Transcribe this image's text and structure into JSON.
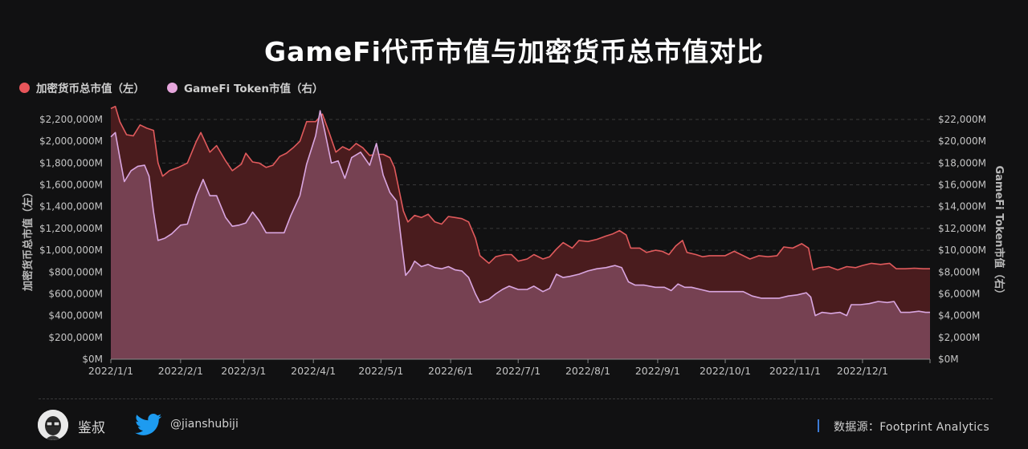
{
  "title": "GameFi代币市值与加密货币总市值对比",
  "legend": {
    "left_series": "加密货币总市值（左）",
    "right_series": "GameFi Token市值（右）"
  },
  "footer": {
    "author": "鉴叔",
    "handle": "@jianshubiji",
    "source": "数据源：Footprint Analytics"
  },
  "colors": {
    "background": "#111112",
    "crypto_line": "#e05a5c",
    "crypto_fill": "#4a1c1e",
    "gamefi_line": "#d9a6e0",
    "gamefi_fill": "#7a4457",
    "legend_crypto": "#e8555a",
    "legend_gamefi": "#e6a6dc",
    "twitter": "#1d9bf0"
  },
  "chart_data": {
    "type": "area",
    "title": "GameFi代币市值与加密货币总市值对比",
    "ylabel_left": "加密货币总市值（左）",
    "ylabel_right": "GameFi Token市值（右）",
    "ylim_left": [
      0,
      2200000
    ],
    "ylim_right": [
      0,
      22000
    ],
    "y_unit": "M",
    "yticks_left": [
      "$0M",
      "$200,000M",
      "$400,000M",
      "$600,000M",
      "$800,000M",
      "$1,000,000M",
      "$1,200,000M",
      "$1,400,000M",
      "$1,600,000M",
      "$1,800,000M",
      "$2,000,000M",
      "$2,200,000M"
    ],
    "yticks_right": [
      "$0M",
      "$2,000M",
      "$4,000M",
      "$6,000M",
      "$8,000M",
      "$10,000M",
      "$12,000M",
      "$14,000M",
      "$16,000M",
      "$18,000M",
      "$20,000M",
      "$22,000M"
    ],
    "xticks": [
      "2022/1/1",
      "2022/2/1",
      "2022/3/1",
      "2022/4/1",
      "2022/5/1",
      "2022/6/1",
      "2022/7/1",
      "2022/8/1",
      "2022/9/1",
      "2022/10/1",
      "2022/11/1",
      "2022/12/1"
    ],
    "grid": true,
    "legend_position": "top-left",
    "x_start": "2022/1/1",
    "x_end": "2022/12/31",
    "series": [
      {
        "name": "加密货币总市值（左）",
        "axis": "left",
        "points": [
          [
            "2022/1/1",
            2300000
          ],
          [
            "2022/1/3",
            2320000
          ],
          [
            "2022/1/5",
            2180000
          ],
          [
            "2022/1/8",
            2060000
          ],
          [
            "2022/1/11",
            2050000
          ],
          [
            "2022/1/14",
            2150000
          ],
          [
            "2022/1/17",
            2120000
          ],
          [
            "2022/1/20",
            2100000
          ],
          [
            "2022/1/22",
            1800000
          ],
          [
            "2022/1/24",
            1680000
          ],
          [
            "2022/1/27",
            1730000
          ],
          [
            "2022/1/31",
            1760000
          ],
          [
            "2022/2/4",
            1800000
          ],
          [
            "2022/2/8",
            2000000
          ],
          [
            "2022/2/10",
            2080000
          ],
          [
            "2022/2/14",
            1900000
          ],
          [
            "2022/2/17",
            1960000
          ],
          [
            "2022/2/21",
            1820000
          ],
          [
            "2022/2/24",
            1730000
          ],
          [
            "2022/2/28",
            1790000
          ],
          [
            "2022/3/2",
            1890000
          ],
          [
            "2022/3/5",
            1810000
          ],
          [
            "2022/3/8",
            1800000
          ],
          [
            "2022/3/11",
            1760000
          ],
          [
            "2022/3/14",
            1780000
          ],
          [
            "2022/3/17",
            1860000
          ],
          [
            "2022/3/20",
            1890000
          ],
          [
            "2022/3/23",
            1940000
          ],
          [
            "2022/3/26",
            2000000
          ],
          [
            "2022/3/29",
            2180000
          ],
          [
            "2022/4/2",
            2180000
          ],
          [
            "2022/4/5",
            2250000
          ],
          [
            "2022/4/8",
            2080000
          ],
          [
            "2022/4/11",
            1900000
          ],
          [
            "2022/4/14",
            1950000
          ],
          [
            "2022/4/17",
            1920000
          ],
          [
            "2022/4/20",
            1980000
          ],
          [
            "2022/4/23",
            1940000
          ],
          [
            "2022/4/26",
            1870000
          ],
          [
            "2022/4/29",
            1880000
          ],
          [
            "2022/5/2",
            1880000
          ],
          [
            "2022/5/5",
            1850000
          ],
          [
            "2022/5/7",
            1760000
          ],
          [
            "2022/5/9",
            1560000
          ],
          [
            "2022/5/11",
            1360000
          ],
          [
            "2022/5/13",
            1260000
          ],
          [
            "2022/5/16",
            1320000
          ],
          [
            "2022/5/19",
            1300000
          ],
          [
            "2022/5/22",
            1330000
          ],
          [
            "2022/5/25",
            1260000
          ],
          [
            "2022/5/28",
            1240000
          ],
          [
            "2022/5/31",
            1310000
          ],
          [
            "2022/6/3",
            1300000
          ],
          [
            "2022/6/6",
            1290000
          ],
          [
            "2022/6/9",
            1260000
          ],
          [
            "2022/6/12",
            1110000
          ],
          [
            "2022/6/14",
            950000
          ],
          [
            "2022/6/18",
            880000
          ],
          [
            "2022/6/21",
            940000
          ],
          [
            "2022/6/25",
            960000
          ],
          [
            "2022/6/28",
            960000
          ],
          [
            "2022/7/1",
            900000
          ],
          [
            "2022/7/5",
            920000
          ],
          [
            "2022/7/8",
            960000
          ],
          [
            "2022/7/12",
            920000
          ],
          [
            "2022/7/15",
            940000
          ],
          [
            "2022/7/18",
            1010000
          ],
          [
            "2022/7/21",
            1070000
          ],
          [
            "2022/7/25",
            1020000
          ],
          [
            "2022/7/28",
            1090000
          ],
          [
            "2022/8/1",
            1080000
          ],
          [
            "2022/8/5",
            1100000
          ],
          [
            "2022/8/9",
            1130000
          ],
          [
            "2022/8/12",
            1150000
          ],
          [
            "2022/8/15",
            1180000
          ],
          [
            "2022/8/18",
            1140000
          ],
          [
            "2022/8/20",
            1020000
          ],
          [
            "2022/8/24",
            1020000
          ],
          [
            "2022/8/27",
            980000
          ],
          [
            "2022/8/31",
            1000000
          ],
          [
            "2022/9/3",
            990000
          ],
          [
            "2022/9/6",
            960000
          ],
          [
            "2022/9/9",
            1040000
          ],
          [
            "2022/9/12",
            1090000
          ],
          [
            "2022/9/14",
            980000
          ],
          [
            "2022/9/18",
            960000
          ],
          [
            "2022/9/21",
            940000
          ],
          [
            "2022/9/24",
            950000
          ],
          [
            "2022/9/28",
            950000
          ],
          [
            "2022/10/1",
            950000
          ],
          [
            "2022/10/5",
            990000
          ],
          [
            "2022/10/8",
            960000
          ],
          [
            "2022/10/12",
            920000
          ],
          [
            "2022/10/16",
            950000
          ],
          [
            "2022/10/20",
            940000
          ],
          [
            "2022/10/24",
            950000
          ],
          [
            "2022/10/27",
            1030000
          ],
          [
            "2022/10/31",
            1020000
          ],
          [
            "2022/11/4",
            1060000
          ],
          [
            "2022/11/7",
            1020000
          ],
          [
            "2022/11/9",
            820000
          ],
          [
            "2022/11/12",
            840000
          ],
          [
            "2022/11/16",
            850000
          ],
          [
            "2022/11/20",
            820000
          ],
          [
            "2022/11/24",
            850000
          ],
          [
            "2022/11/28",
            840000
          ],
          [
            "2022/12/1",
            860000
          ],
          [
            "2022/12/5",
            880000
          ],
          [
            "2022/12/9",
            870000
          ],
          [
            "2022/12/13",
            880000
          ],
          [
            "2022/12/16",
            830000
          ],
          [
            "2022/12/20",
            830000
          ],
          [
            "2022/12/24",
            835000
          ],
          [
            "2022/12/28",
            830000
          ],
          [
            "2022/12/31",
            830000
          ]
        ]
      },
      {
        "name": "GameFi Token市值（右）",
        "axis": "right",
        "points": [
          [
            "2022/1/1",
            20400
          ],
          [
            "2022/1/3",
            20800
          ],
          [
            "2022/1/5",
            18500
          ],
          [
            "2022/1/7",
            16300
          ],
          [
            "2022/1/10",
            17300
          ],
          [
            "2022/1/13",
            17700
          ],
          [
            "2022/1/16",
            17800
          ],
          [
            "2022/1/18",
            16800
          ],
          [
            "2022/1/20",
            13500
          ],
          [
            "2022/1/22",
            10900
          ],
          [
            "2022/1/25",
            11100
          ],
          [
            "2022/1/28",
            11500
          ],
          [
            "2022/2/1",
            12300
          ],
          [
            "2022/2/4",
            12400
          ],
          [
            "2022/2/8",
            15000
          ],
          [
            "2022/2/11",
            16500
          ],
          [
            "2022/2/14",
            15000
          ],
          [
            "2022/2/17",
            15000
          ],
          [
            "2022/2/21",
            13000
          ],
          [
            "2022/2/24",
            12200
          ],
          [
            "2022/2/27",
            12300
          ],
          [
            "2022/3/2",
            12500
          ],
          [
            "2022/3/5",
            13500
          ],
          [
            "2022/3/8",
            12700
          ],
          [
            "2022/3/11",
            11600
          ],
          [
            "2022/3/15",
            11600
          ],
          [
            "2022/3/19",
            11600
          ],
          [
            "2022/3/22",
            13200
          ],
          [
            "2022/3/26",
            15000
          ],
          [
            "2022/3/29",
            17900
          ],
          [
            "2022/4/2",
            20500
          ],
          [
            "2022/4/4",
            22800
          ],
          [
            "2022/4/6",
            21000
          ],
          [
            "2022/4/9",
            18000
          ],
          [
            "2022/4/12",
            18200
          ],
          [
            "2022/4/15",
            16600
          ],
          [
            "2022/4/18",
            18500
          ],
          [
            "2022/4/22",
            19000
          ],
          [
            "2022/4/26",
            17800
          ],
          [
            "2022/4/29",
            19800
          ],
          [
            "2022/5/2",
            16900
          ],
          [
            "2022/5/5",
            15300
          ],
          [
            "2022/5/8",
            14500
          ],
          [
            "2022/5/10",
            11000
          ],
          [
            "2022/5/12",
            7700
          ],
          [
            "2022/5/14",
            8200
          ],
          [
            "2022/5/16",
            9000
          ],
          [
            "2022/5/19",
            8500
          ],
          [
            "2022/5/22",
            8700
          ],
          [
            "2022/5/25",
            8400
          ],
          [
            "2022/5/28",
            8300
          ],
          [
            "2022/5/31",
            8500
          ],
          [
            "2022/6/3",
            8200
          ],
          [
            "2022/6/6",
            8100
          ],
          [
            "2022/6/9",
            7500
          ],
          [
            "2022/6/12",
            6000
          ],
          [
            "2022/6/14",
            5200
          ],
          [
            "2022/6/18",
            5500
          ],
          [
            "2022/6/21",
            6000
          ],
          [
            "2022/6/24",
            6400
          ],
          [
            "2022/6/27",
            6700
          ],
          [
            "2022/7/1",
            6400
          ],
          [
            "2022/7/5",
            6400
          ],
          [
            "2022/7/8",
            6700
          ],
          [
            "2022/7/12",
            6200
          ],
          [
            "2022/7/15",
            6500
          ],
          [
            "2022/7/18",
            7800
          ],
          [
            "2022/7/21",
            7500
          ],
          [
            "2022/7/24",
            7600
          ],
          [
            "2022/7/28",
            7800
          ],
          [
            "2022/8/1",
            8100
          ],
          [
            "2022/8/5",
            8300
          ],
          [
            "2022/8/9",
            8400
          ],
          [
            "2022/8/13",
            8600
          ],
          [
            "2022/8/16",
            8400
          ],
          [
            "2022/8/19",
            7100
          ],
          [
            "2022/8/22",
            6800
          ],
          [
            "2022/8/26",
            6800
          ],
          [
            "2022/8/31",
            6600
          ],
          [
            "2022/9/4",
            6600
          ],
          [
            "2022/9/7",
            6300
          ],
          [
            "2022/9/10",
            6900
          ],
          [
            "2022/9/13",
            6600
          ],
          [
            "2022/9/16",
            6600
          ],
          [
            "2022/9/20",
            6400
          ],
          [
            "2022/9/24",
            6200
          ],
          [
            "2022/9/28",
            6200
          ],
          [
            "2022/10/1",
            6200
          ],
          [
            "2022/10/5",
            6200
          ],
          [
            "2022/10/9",
            6200
          ],
          [
            "2022/10/13",
            5800
          ],
          [
            "2022/10/17",
            5600
          ],
          [
            "2022/10/21",
            5600
          ],
          [
            "2022/10/25",
            5600
          ],
          [
            "2022/10/29",
            5800
          ],
          [
            "2022/11/2",
            5900
          ],
          [
            "2022/11/6",
            6100
          ],
          [
            "2022/11/8",
            5700
          ],
          [
            "2022/11/10",
            4000
          ],
          [
            "2022/11/13",
            4300
          ],
          [
            "2022/11/17",
            4200
          ],
          [
            "2022/11/21",
            4300
          ],
          [
            "2022/11/24",
            4000
          ],
          [
            "2022/11/26",
            5000
          ],
          [
            "2022/11/30",
            5000
          ],
          [
            "2022/12/4",
            5100
          ],
          [
            "2022/12/8",
            5300
          ],
          [
            "2022/12/12",
            5200
          ],
          [
            "2022/12/15",
            5300
          ],
          [
            "2022/12/18",
            4300
          ],
          [
            "2022/12/22",
            4300
          ],
          [
            "2022/12/26",
            4400
          ],
          [
            "2022/12/29",
            4300
          ],
          [
            "2022/12/31",
            4300
          ]
        ]
      }
    ]
  }
}
